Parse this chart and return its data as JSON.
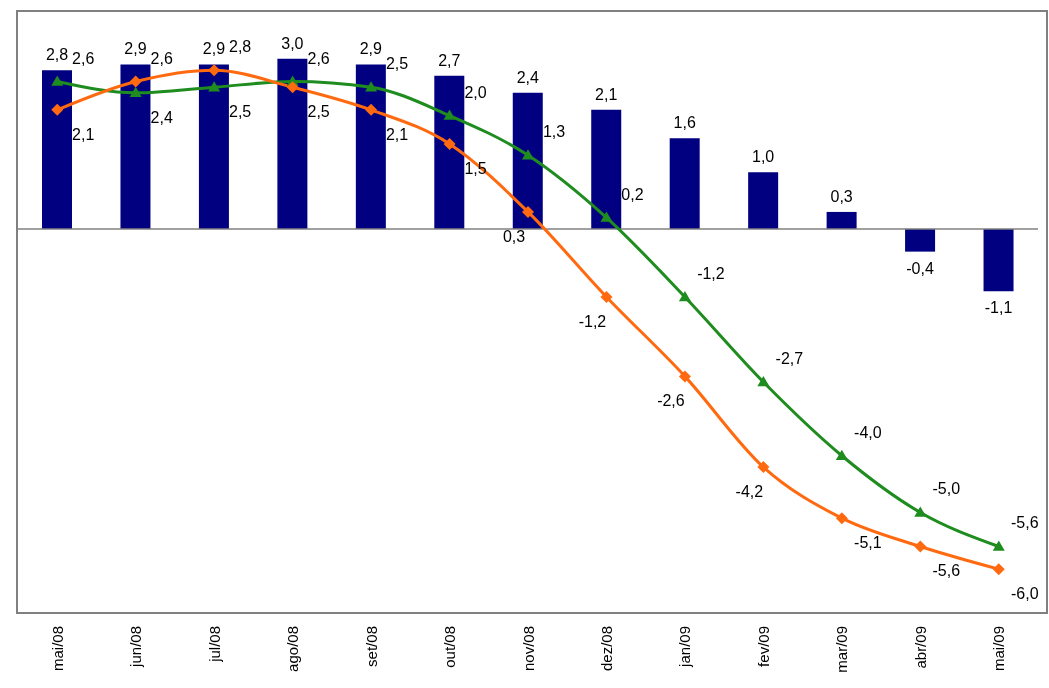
{
  "chart_data": {
    "type": "bar",
    "categories": [
      "mai/08",
      "jun/08",
      "jul/08",
      "ago/08",
      "set/08",
      "out/08",
      "nov/08",
      "dez/08",
      "jan/09",
      "fev/09",
      "mar/09",
      "abr/09",
      "mai/09"
    ],
    "series": [
      {
        "color": "#000080",
        "values": [
          2.8,
          2.9,
          2.9,
          3.0,
          2.9,
          2.7,
          2.4,
          2.1,
          1.6,
          1.0,
          0.3,
          -0.4,
          -1.1
        ],
        "value_labels": [
          "2,8",
          "2,9",
          "2,9",
          "3,0",
          "2,9",
          "2,7",
          "2,4",
          "2,1",
          "1,6",
          "1,0",
          "0,3",
          "-0,4",
          "-1,1"
        ]
      },
      {
        "type": "line",
        "color": "#1e8c1e",
        "marker": "triangle",
        "values": [
          2.6,
          2.4,
          2.5,
          2.6,
          2.5,
          2.0,
          1.3,
          0.2,
          -1.2,
          -2.7,
          -4.0,
          -5.0,
          -5.6
        ],
        "value_labels": [
          "2,6",
          "2,4",
          "2,5",
          "2,6",
          "2,5",
          "2,0",
          "1,3",
          "0,2",
          "-1,2",
          "-2,7",
          "-4,0",
          "-5,0",
          "-5,6"
        ]
      },
      {
        "type": "line",
        "color": "#ff6a10",
        "marker": "diamond",
        "values": [
          2.1,
          2.6,
          2.8,
          2.5,
          2.1,
          1.5,
          0.3,
          -1.2,
          -2.6,
          -4.2,
          -5.1,
          -5.6,
          -6.0
        ],
        "value_labels": [
          "2,1",
          "2,6",
          "2,8",
          "2,5",
          "2,1",
          "1,5",
          "0,3",
          "-1,2",
          "-2,6",
          "-4,2",
          "-5,1",
          "-5,6",
          "-6,0"
        ]
      }
    ],
    "ref_lines": [
      {
        "axis": "y",
        "value": 0,
        "color": "#808080"
      }
    ],
    "grid": false,
    "legend": false,
    "tick_labels": "x"
  }
}
